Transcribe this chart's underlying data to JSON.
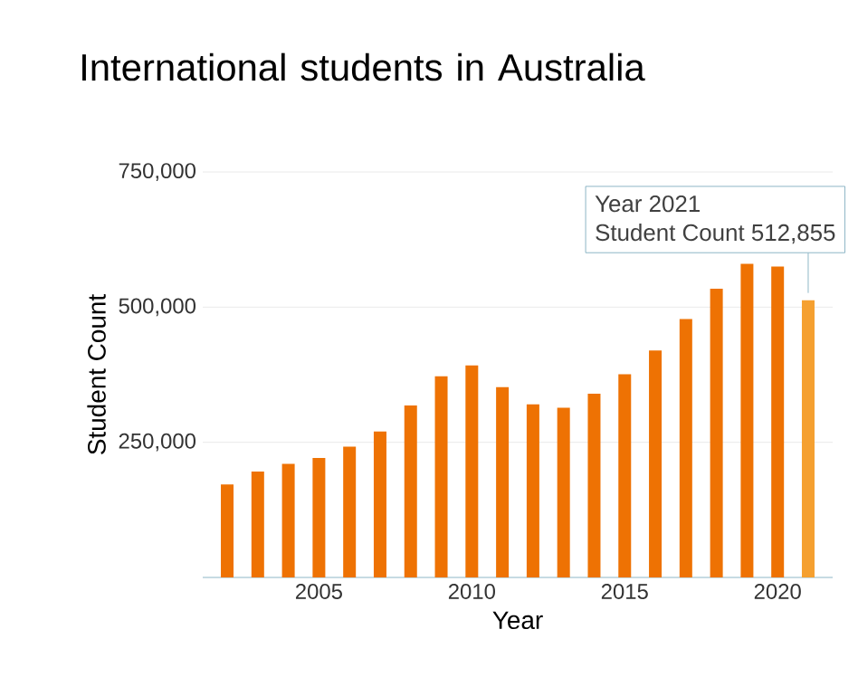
{
  "chart_data": {
    "type": "bar",
    "title": "International students in Australia",
    "xlabel": "Year",
    "ylabel": "Student Count",
    "x": [
      2002,
      2003,
      2004,
      2005,
      2006,
      2007,
      2008,
      2009,
      2010,
      2011,
      2012,
      2013,
      2014,
      2015,
      2016,
      2017,
      2018,
      2019,
      2020,
      2021
    ],
    "values": [
      172000,
      196000,
      210000,
      221000,
      242000,
      270000,
      318000,
      372000,
      392000,
      352000,
      320000,
      314000,
      340000,
      376000,
      420000,
      478000,
      534000,
      580000,
      575000,
      512855
    ],
    "colors": [
      "#ee7203",
      "#ee7203",
      "#ee7203",
      "#ee7203",
      "#ee7203",
      "#ee7203",
      "#ee7203",
      "#ee7203",
      "#ee7203",
      "#ee7203",
      "#ee7203",
      "#ee7203",
      "#ee7203",
      "#ee7203",
      "#ee7203",
      "#ee7203",
      "#ee7203",
      "#ee7203",
      "#ee7203",
      "#f5a030"
    ],
    "xlim": [
      2001.2,
      2021.8
    ],
    "xticks": [
      2005,
      2010,
      2015,
      2020
    ],
    "ylim": [
      0,
      750000
    ],
    "yticks": [
      {
        "value": 250000,
        "label": "250,000"
      },
      {
        "value": 500000,
        "label": "500,000"
      },
      {
        "value": 750000,
        "label": "750,000"
      }
    ],
    "grid": "y",
    "annotations": [
      "Year 2021",
      {
        "text": "Student Count 512,855",
        "x": 2021,
        "y": 512855
      }
    ]
  }
}
